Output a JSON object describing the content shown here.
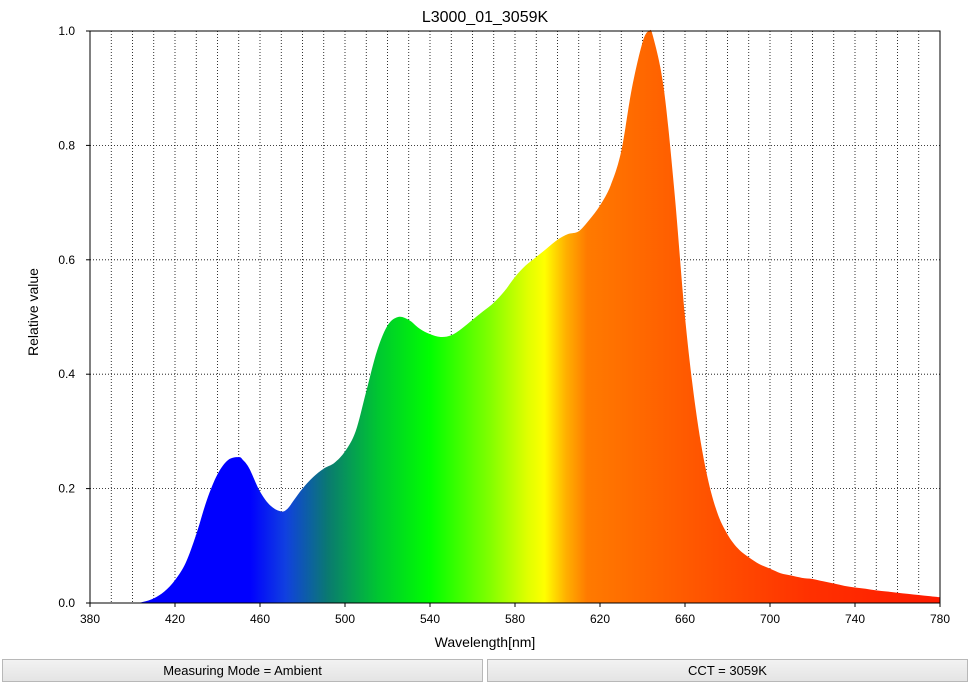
{
  "chart_data": {
    "type": "area",
    "title": "L3000_01_3059K",
    "xlabel": "Wavelength[nm]",
    "ylabel": "Relative value",
    "xlim": [
      380,
      780
    ],
    "ylim": [
      0,
      1.0
    ],
    "grid": true,
    "x_ticks": [
      "380",
      "420",
      "460",
      "500",
      "540",
      "580",
      "620",
      "660",
      "700",
      "740",
      "780"
    ],
    "y_ticks": [
      "0.0",
      "0.2",
      "0.4",
      "0.6",
      "0.8",
      "1.0"
    ],
    "fill": "spectral color gradient by wavelength",
    "x": [
      380,
      400,
      405,
      410,
      415,
      420,
      425,
      430,
      435,
      440,
      445,
      450,
      452,
      455,
      460,
      465,
      470,
      473,
      476,
      480,
      485,
      490,
      495,
      500,
      505,
      510,
      515,
      520,
      525,
      530,
      535,
      540,
      545,
      550,
      555,
      560,
      565,
      570,
      575,
      580,
      585,
      590,
      595,
      600,
      605,
      610,
      615,
      620,
      625,
      630,
      635,
      640,
      643,
      645,
      650,
      655,
      660,
      665,
      670,
      675,
      680,
      685,
      690,
      695,
      700,
      705,
      710,
      715,
      720,
      725,
      730,
      735,
      740,
      745,
      750,
      755,
      760,
      765,
      770,
      775,
      780
    ],
    "values": [
      0.0,
      0.0,
      0.002,
      0.008,
      0.02,
      0.04,
      0.07,
      0.12,
      0.18,
      0.225,
      0.25,
      0.255,
      0.25,
      0.235,
      0.195,
      0.17,
      0.16,
      0.165,
      0.18,
      0.2,
      0.22,
      0.235,
      0.245,
      0.265,
      0.3,
      0.37,
      0.44,
      0.485,
      0.5,
      0.495,
      0.48,
      0.47,
      0.465,
      0.468,
      0.48,
      0.495,
      0.51,
      0.525,
      0.545,
      0.57,
      0.59,
      0.605,
      0.62,
      0.635,
      0.645,
      0.65,
      0.67,
      0.695,
      0.73,
      0.79,
      0.9,
      0.98,
      1.0,
      0.99,
      0.9,
      0.72,
      0.5,
      0.34,
      0.23,
      0.16,
      0.12,
      0.095,
      0.08,
      0.068,
      0.06,
      0.052,
      0.048,
      0.044,
      0.042,
      0.038,
      0.034,
      0.03,
      0.027,
      0.025,
      0.022,
      0.02,
      0.018,
      0.016,
      0.014,
      0.012,
      0.01
    ]
  },
  "status_bar": {
    "measuring_mode": "Measuring Mode = Ambient",
    "cct": "CCT = 3059K"
  }
}
